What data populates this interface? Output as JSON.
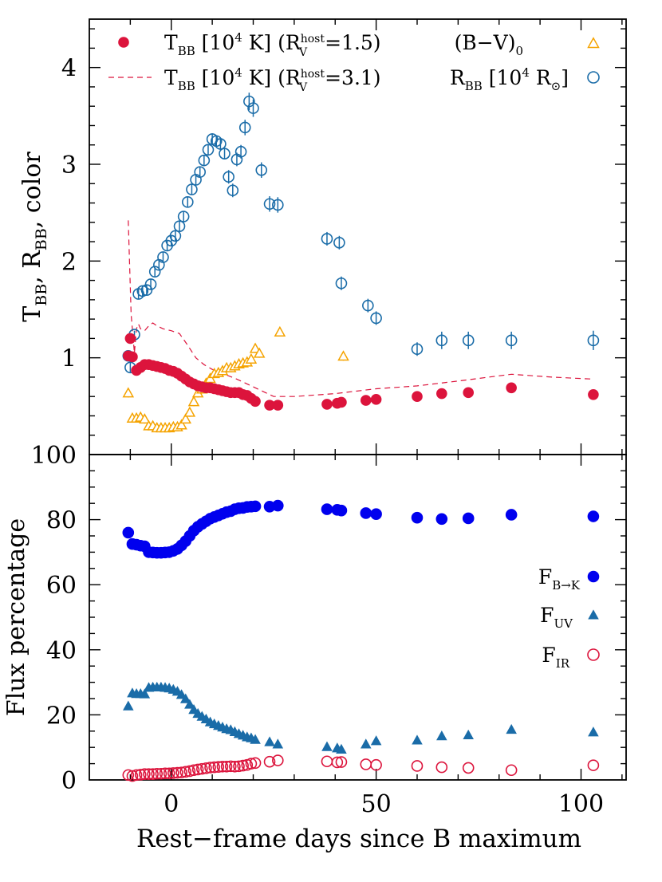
{
  "chart_data": [
    {
      "type": "scatter",
      "panel": "top",
      "ylabel": "T_BB, R_BB, color",
      "xlim": [
        -20,
        111
      ],
      "ylim": [
        0,
        4.5
      ],
      "y_ticks": [
        "1",
        "2",
        "3",
        "4"
      ],
      "legend": {
        "placement": "top",
        "left_entries": [
          {
            "marker": "filled-circle",
            "color": "#dc143c",
            "label": "T_BB [10^4 K] (R_V^host=1.5)"
          },
          {
            "marker": "dashed-line",
            "color": "#dc143c",
            "label": "T_BB [10^4 K] (R_V^host=3.1)"
          }
        ],
        "right_entries": [
          {
            "marker": "open-triangle",
            "color": "#f5a300",
            "label": "(B−V)_0"
          },
          {
            "marker": "open-circle",
            "color": "#1a6ca8",
            "label": "R_BB [10^4 R_⊙]"
          }
        ]
      },
      "colors": {
        "T_BB": "#dc143c",
        "color_index": "#f5a300",
        "R_BB": "#1a6ca8"
      },
      "series": [
        {
          "name": "T_BB [10^4 K] (R_V^host=1.5)",
          "style": "filled-circle",
          "x": [
            -10.5,
            -10,
            -9.5,
            -8.5,
            -7.5,
            -6.5,
            -5.5,
            -4.5,
            -3.5,
            -2.5,
            -1.5,
            -0.5,
            0.5,
            1.5,
            2.5,
            3.5,
            4.5,
            5.5,
            6.5,
            7.5,
            8.5,
            9.5,
            10.5,
            11.5,
            12.5,
            13.5,
            14.5,
            15.5,
            16.5,
            17.5,
            18.5,
            19.5,
            20.5,
            24,
            26,
            38,
            40.5,
            41.5,
            47.5,
            50,
            60,
            66,
            72.5,
            83,
            103
          ],
          "y": [
            1.02,
            1.2,
            1.01,
            0.87,
            0.9,
            0.93,
            0.93,
            0.92,
            0.91,
            0.9,
            0.89,
            0.87,
            0.86,
            0.84,
            0.81,
            0.78,
            0.75,
            0.73,
            0.71,
            0.7,
            0.69,
            0.69,
            0.68,
            0.67,
            0.66,
            0.65,
            0.64,
            0.64,
            0.64,
            0.62,
            0.61,
            0.58,
            0.55,
            0.51,
            0.51,
            0.52,
            0.53,
            0.54,
            0.56,
            0.57,
            0.6,
            0.63,
            0.64,
            0.69,
            0.62
          ]
        },
        {
          "name": "T_BB [10^4 K] (R_V^host=3.1)",
          "style": "dashed-line",
          "x": [
            -10.5,
            -9.8,
            -9,
            -8.5,
            -8,
            -7.5,
            -6.5,
            -5.5,
            -4.5,
            -3.5,
            -2,
            0,
            2,
            4,
            6,
            8,
            10,
            13,
            16,
            20,
            25,
            30,
            40,
            50,
            60,
            70,
            83,
            93,
            103
          ],
          "y": [
            2.42,
            1.45,
            1.05,
            1.3,
            1.35,
            1.3,
            1.28,
            1.33,
            1.36,
            1.33,
            1.3,
            1.28,
            1.25,
            1.13,
            1.0,
            0.93,
            0.88,
            0.83,
            0.78,
            0.7,
            0.6,
            0.6,
            0.63,
            0.68,
            0.71,
            0.76,
            0.83,
            0.8,
            0.78
          ]
        },
        {
          "name": "(B−V)_0",
          "style": "open-triangle",
          "x": [
            -10.5,
            -9.5,
            -8.5,
            -7.5,
            -6.5,
            -5.5,
            -4.5,
            -3.5,
            -2.5,
            -1.5,
            -0.5,
            0.5,
            1.5,
            2.5,
            3.5,
            4.5,
            5.5,
            6.5,
            7.5,
            8.5,
            9.5,
            10.5,
            11.5,
            12.5,
            13.5,
            14.5,
            15.5,
            16.5,
            17.5,
            18.5,
            19.5,
            20.5,
            21.5,
            26.5,
            42
          ],
          "y": [
            0.63,
            0.37,
            0.37,
            0.38,
            0.36,
            0.29,
            0.29,
            0.27,
            0.27,
            0.27,
            0.27,
            0.28,
            0.28,
            0.3,
            0.36,
            0.43,
            0.54,
            0.63,
            0.67,
            0.73,
            0.78,
            0.83,
            0.84,
            0.86,
            0.89,
            0.89,
            0.91,
            0.93,
            0.94,
            0.95,
            0.98,
            1.09,
            1.04,
            1.26,
            1.01
          ],
          "yerr": 0.04
        },
        {
          "name": "R_BB [10^4 R_⊙]",
          "style": "open-circle",
          "x": [
            -10.5,
            -10,
            -9,
            -8,
            -7,
            -6,
            -5,
            -4,
            -3,
            -2,
            -1,
            0,
            1,
            2,
            3,
            4,
            5,
            6,
            7,
            8,
            9,
            10,
            11,
            12,
            13,
            14,
            15,
            16,
            17,
            18,
            19,
            20,
            22,
            24,
            26,
            38,
            41,
            41.5,
            48,
            50,
            60,
            66,
            72.5,
            83,
            103
          ],
          "y": [
            1.02,
            0.9,
            1.24,
            1.66,
            1.69,
            1.7,
            1.76,
            1.89,
            1.96,
            2.04,
            2.16,
            2.21,
            2.26,
            2.36,
            2.46,
            2.61,
            2.74,
            2.84,
            2.92,
            3.04,
            3.15,
            3.26,
            3.24,
            3.21,
            3.11,
            2.87,
            2.73,
            3.05,
            3.13,
            3.38,
            3.65,
            3.58,
            2.94,
            2.59,
            2.58,
            2.23,
            2.19,
            1.77,
            1.54,
            1.41,
            1.09,
            1.18,
            1.18,
            1.18,
            1.18
          ],
          "yerr": [
            0.04,
            0.05,
            0.04,
            0.05,
            0.05,
            0.05,
            0.05,
            0.05,
            0.05,
            0.05,
            0.05,
            0.05,
            0.05,
            0.05,
            0.05,
            0.05,
            0.05,
            0.05,
            0.05,
            0.05,
            0.06,
            0.06,
            0.06,
            0.06,
            0.06,
            0.07,
            0.07,
            0.07,
            0.07,
            0.08,
            0.09,
            0.09,
            0.08,
            0.08,
            0.08,
            0.07,
            0.07,
            0.07,
            0.07,
            0.07,
            0.07,
            0.09,
            0.09,
            0.09,
            0.1
          ]
        }
      ]
    },
    {
      "type": "scatter",
      "panel": "bottom",
      "xlabel": "Rest−frame days since B maximum",
      "ylabel": "Flux percentage",
      "xlim": [
        -20,
        111
      ],
      "ylim": [
        0,
        100
      ],
      "x_ticks": [
        "0",
        "50",
        "100"
      ],
      "y_ticks": [
        "0",
        "20",
        "40",
        "60",
        "80",
        "100"
      ],
      "legend": {
        "placement": "right",
        "entries": [
          {
            "marker": "filled-circle",
            "color": "#0000ee",
            "label": "F_B→K"
          },
          {
            "marker": "filled-triangle",
            "color": "#1a6ca8",
            "label": "F_UV"
          },
          {
            "marker": "open-circle",
            "color": "#dc143c",
            "label": "F_IR"
          }
        ]
      },
      "colors": {
        "F_BK": "#0000ee",
        "F_UV": "#1a6ca8",
        "F_IR": "#dc143c"
      },
      "series": [
        {
          "name": "F_B→K",
          "style": "filled-circle",
          "x": [
            -10.5,
            -9.5,
            -8.5,
            -7.5,
            -6.5,
            -5.5,
            -4.5,
            -3.5,
            -2.5,
            -1.5,
            -0.5,
            0.5,
            1.5,
            2.5,
            3.5,
            4.5,
            5.5,
            6.5,
            7.5,
            8.5,
            9.5,
            10.5,
            11.5,
            12.5,
            13.5,
            14.5,
            15.5,
            16.5,
            17.5,
            18.5,
            19.5,
            20.5,
            24,
            26,
            38,
            40.5,
            41.5,
            47.5,
            50,
            60,
            66,
            72.5,
            83,
            103
          ],
          "y": [
            76,
            72.5,
            72.3,
            72,
            71.8,
            70,
            69.9,
            69.8,
            69.8,
            69.9,
            70,
            70.4,
            71,
            72.1,
            73.4,
            75,
            76.6,
            77.8,
            78.7,
            79.5,
            80.3,
            80.8,
            81.3,
            81.8,
            82.3,
            82.6,
            83.2,
            83.5,
            83.6,
            83.9,
            84,
            84.1,
            84,
            84.3,
            83.2,
            83,
            82.8,
            82,
            81.7,
            80.6,
            80.2,
            80.4,
            81.5,
            81
          ]
        },
        {
          "name": "F_UV",
          "style": "filled-triangle",
          "x": [
            -10.5,
            -9.5,
            -8.5,
            -7.5,
            -6.5,
            -5.5,
            -4.5,
            -3.5,
            -2.5,
            -1.5,
            -0.5,
            0.5,
            1.5,
            2.5,
            3.5,
            4.5,
            5.5,
            6.5,
            7.5,
            8.5,
            9.5,
            10.5,
            11.5,
            12.5,
            13.5,
            14.5,
            15.5,
            16.5,
            17.5,
            18.5,
            19.5,
            20.5,
            24,
            26,
            38,
            40.5,
            41.5,
            47.5,
            50,
            60,
            66,
            72.5,
            83,
            103
          ],
          "y": [
            22.5,
            26.5,
            26.3,
            26.3,
            26.2,
            28.2,
            28.3,
            28.3,
            28.3,
            28.2,
            28,
            27.6,
            27,
            26,
            24.7,
            23,
            21.4,
            20.2,
            19.3,
            18.5,
            17.6,
            17,
            16.5,
            16,
            15.5,
            15.2,
            14.6,
            14,
            13.5,
            13,
            12.7,
            12.2,
            11.5,
            10.8,
            10,
            9.6,
            9.2,
            10.8,
            11.8,
            12,
            13.3,
            13.6,
            15.3,
            14.5
          ]
        },
        {
          "name": "F_IR",
          "style": "open-circle",
          "x": [
            -10.5,
            -9.5,
            -8.5,
            -7.5,
            -6.5,
            -5.5,
            -4.5,
            -3.5,
            -2.5,
            -1.5,
            -0.5,
            0.5,
            1.5,
            2.5,
            3.5,
            4.5,
            5.5,
            6.5,
            7.5,
            8.5,
            9.5,
            10.5,
            11.5,
            12.5,
            13.5,
            14.5,
            15.5,
            16.5,
            17.5,
            18.5,
            19.5,
            20.5,
            24,
            26,
            38,
            40.5,
            41.5,
            47.5,
            50,
            60,
            66,
            72.5,
            83,
            103
          ],
          "y": [
            1.5,
            1.2,
            1.5,
            1.6,
            1.8,
            1.8,
            1.8,
            1.9,
            1.9,
            2,
            2,
            2.1,
            2.2,
            2.3,
            2.5,
            2.7,
            3,
            3.2,
            3.4,
            3.6,
            3.8,
            3.9,
            4,
            4.1,
            4.1,
            4.2,
            4.1,
            4.2,
            4.4,
            4.6,
            5,
            5.2,
            5.6,
            6,
            5.7,
            5.4,
            5.5,
            4.8,
            4.6,
            4.3,
            3.9,
            3.7,
            3,
            4.5
          ]
        }
      ]
    }
  ]
}
